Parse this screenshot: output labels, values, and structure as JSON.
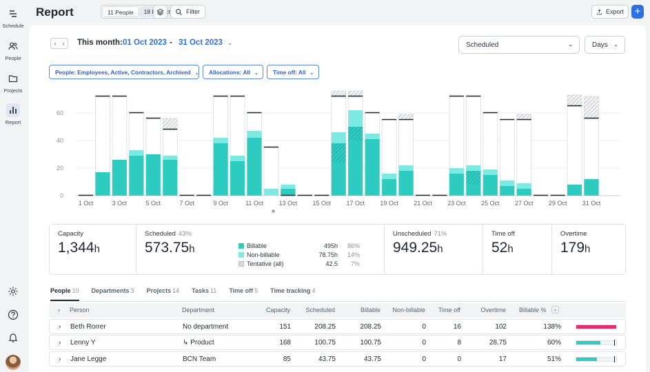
{
  "rail": {
    "schedule_label": "Schedule",
    "people_label": "People",
    "projects_label": "Projects",
    "report_label": "Report"
  },
  "topbar": {
    "title": "Report",
    "seg_people": "11 People",
    "seg_projects": "18 Projects",
    "filter_label": "Filter",
    "export_label": "Export",
    "add_label": "+"
  },
  "period": {
    "label": "This month:",
    "start": "01 Oct 2023",
    "dash": "-",
    "end": "31 Oct 2023",
    "metric_select": "Scheduled",
    "unit_select": "Days"
  },
  "filters": {
    "people": "People: Employees, Active, Contractors, Archived",
    "allocations": "Allocations: All",
    "timeoff": "Time off: All"
  },
  "colors": {
    "billable": "#2ecbc0",
    "non_billable": "#7ee8e2",
    "tentative": "#d9dcdf",
    "accent": "#2f6fe4",
    "over": "#e0306a"
  },
  "chart_data": {
    "type": "bar",
    "ylim": [
      0,
      70
    ],
    "yticks": [
      0,
      20,
      40,
      60
    ],
    "xticks": [
      "1 Oct",
      "3 Oct",
      "5 Oct",
      "7 Oct",
      "9 Oct",
      "11 Oct",
      "13 Oct",
      "15 Oct",
      "17 Oct",
      "19 Oct",
      "21 Oct",
      "23 Oct",
      "25 Oct",
      "27 Oct",
      "29 Oct",
      "31 Oct"
    ],
    "days": [
      "1",
      "2",
      "3",
      "4",
      "5",
      "6",
      "7",
      "8",
      "9",
      "10",
      "11",
      "12",
      "13",
      "14",
      "15",
      "16",
      "17",
      "18",
      "19",
      "20",
      "21",
      "22",
      "23",
      "24",
      "25",
      "26",
      "27",
      "28",
      "29",
      "30",
      "31"
    ],
    "capacity": [
      0,
      72,
      72,
      60,
      56,
      48,
      0,
      0,
      72,
      72,
      60,
      35,
      0,
      0,
      0,
      72,
      72,
      60,
      55,
      55,
      0,
      0,
      72,
      72,
      60,
      55,
      55,
      0,
      0,
      65,
      56
    ],
    "series": [
      {
        "name": "Billable",
        "values": [
          0,
          17,
          26,
          29,
          30,
          26,
          0,
          0,
          38,
          25,
          42,
          0,
          5,
          0,
          0,
          24,
          40,
          41,
          12,
          18,
          0,
          0,
          16,
          8,
          15,
          7,
          5,
          0,
          0,
          8,
          12
        ]
      },
      {
        "name": "Non-billable",
        "values": [
          0,
          0,
          0,
          4,
          0,
          3,
          0,
          0,
          4,
          4,
          5,
          5,
          3,
          0,
          0,
          8,
          12,
          4,
          4,
          4,
          0,
          0,
          4,
          4,
          4,
          4,
          4,
          0,
          0,
          0,
          0
        ]
      },
      {
        "name": "Tentative",
        "values": [
          0,
          0,
          0,
          0,
          0,
          0,
          0,
          0,
          0,
          0,
          0,
          0,
          0,
          0,
          0,
          14,
          10,
          0,
          0,
          0,
          0,
          0,
          0,
          10,
          0,
          0,
          0,
          0,
          0,
          0,
          0
        ]
      }
    ],
    "overtime_hatch": [
      0,
      0,
      0,
      0,
      0,
      8,
      0,
      0,
      0,
      0,
      0,
      0,
      5,
      0,
      0,
      4,
      4,
      0,
      0,
      4,
      0,
      0,
      0,
      0,
      0,
      0,
      4,
      0,
      0,
      8,
      16
    ],
    "legend": "none"
  },
  "stats": {
    "capacity": {
      "label": "Capacity",
      "value": "1,344",
      "unit": "h"
    },
    "scheduled": {
      "label": "Scheduled",
      "pct": "43%",
      "value": "573.75",
      "unit": "h"
    },
    "breakdown": [
      {
        "name": "Billable",
        "hours": "495h",
        "pct": "86%"
      },
      {
        "name": "Non-billable",
        "hours": "78.75h",
        "pct": "14%"
      },
      {
        "name": "Tentative (all)",
        "hours": "42.5",
        "pct": "7%"
      }
    ],
    "unscheduled": {
      "label": "Unscheduled",
      "pct": "71%",
      "value": "949.25",
      "unit": "h"
    },
    "timeoff": {
      "label": "Time off",
      "value": "52",
      "unit": "h"
    },
    "overtime": {
      "label": "Overtime",
      "value": "179",
      "unit": "h"
    }
  },
  "tabs": [
    {
      "label": "People",
      "count": "10"
    },
    {
      "label": "Departments",
      "count": "3"
    },
    {
      "label": "Projects",
      "count": "14"
    },
    {
      "label": "Tasks",
      "count": "11"
    },
    {
      "label": "Time off",
      "count": "5"
    },
    {
      "label": "Time tracking",
      "count": "4"
    }
  ],
  "table": {
    "headers": {
      "person": "Person",
      "department": "Department",
      "capacity": "Capacity",
      "scheduled": "Scheduled",
      "billable": "Billable",
      "non_billable": "Non-billable",
      "time_off": "Time off",
      "overtime": "Overtime",
      "billable_pct": "Billable %"
    },
    "rows": [
      {
        "person": "Beth Rorrer",
        "department": "No department",
        "capacity": "151",
        "scheduled": "208.25",
        "billable": "208.25",
        "non_billable": "0",
        "time_off": "16",
        "overtime": "102",
        "billable_pct": "138%",
        "bar": 1.0,
        "bar_color": "#e0306a"
      },
      {
        "person": "Lenny Y",
        "department": "↳ Product",
        "capacity": "168",
        "scheduled": "100.75",
        "billable": "100.75",
        "non_billable": "0",
        "time_off": "8",
        "overtime": "28.75",
        "billable_pct": "60%",
        "bar": 0.6,
        "bar_color": "#2ecbc0"
      },
      {
        "person": "Jane Legge",
        "department": "BCN Team",
        "capacity": "85",
        "scheduled": "43.75",
        "billable": "43.75",
        "non_billable": "0",
        "time_off": "0",
        "overtime": "17",
        "billable_pct": "51%",
        "bar": 0.51,
        "bar_color": "#2ecbc0"
      }
    ]
  }
}
